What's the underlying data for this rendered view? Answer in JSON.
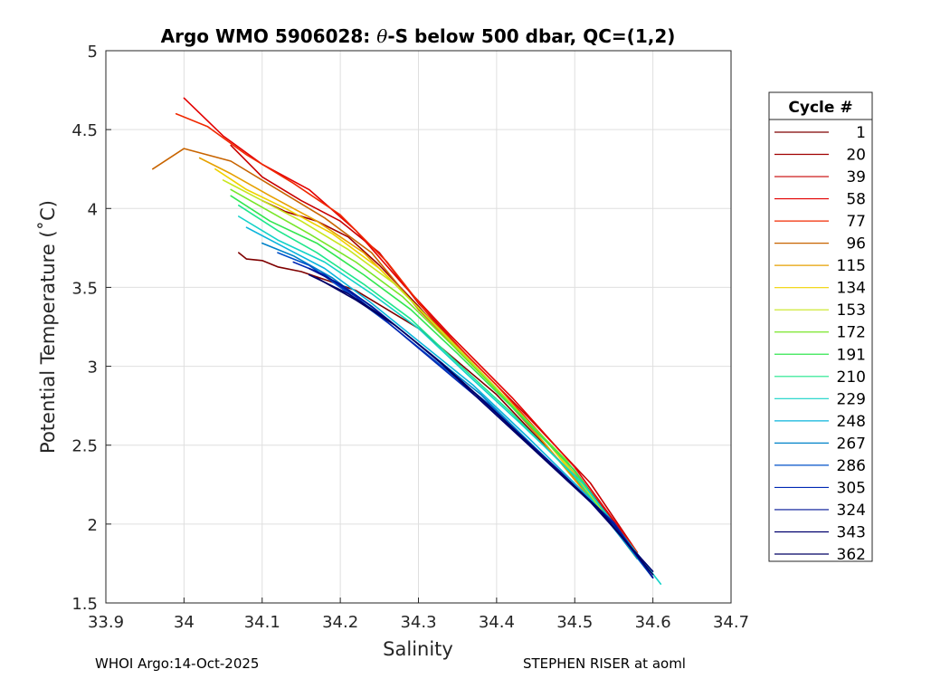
{
  "chart_data": {
    "type": "line",
    "title_prefix": "Argo WMO 5906028: ",
    "title_theta": "θ",
    "title_suffix": "-S below 500 dbar,  QC=(1,2)",
    "xlabel": "Salinity",
    "ylabel": "Potential Temperature (˚C)",
    "xlim": [
      33.9,
      34.7
    ],
    "ylim": [
      1.5,
      5
    ],
    "xticks": [
      33.9,
      34,
      34.1,
      34.2,
      34.3,
      34.4,
      34.5,
      34.6,
      34.7
    ],
    "xtick_labels": [
      "33.9",
      "34",
      "34.1",
      "34.2",
      "34.3",
      "34.4",
      "34.5",
      "34.6",
      "34.7"
    ],
    "yticks": [
      1.5,
      2,
      2.5,
      3,
      3.5,
      4,
      4.5,
      5
    ],
    "ytick_labels": [
      "1.5",
      "2",
      "2.5",
      "3",
      "3.5",
      "4",
      "4.5",
      "5"
    ],
    "grid": true,
    "legend_title": "Cycle #",
    "legend_position": "outside-right",
    "series": [
      {
        "name": "1",
        "color": "#7f0000",
        "s": [
          34.07,
          34.08,
          34.1,
          34.12,
          34.15,
          34.18,
          34.22,
          34.3,
          34.4,
          34.5,
          34.58
        ],
        "t": [
          3.72,
          3.68,
          3.67,
          3.63,
          3.6,
          3.55,
          3.48,
          3.24,
          2.82,
          2.3,
          1.78
        ]
      },
      {
        "name": "20",
        "color": "#a00000",
        "s": [
          34.1,
          34.13,
          34.17,
          34.21,
          34.25,
          34.3,
          34.35,
          34.42,
          34.5,
          34.58
        ],
        "t": [
          4.05,
          3.98,
          3.92,
          3.82,
          3.64,
          3.38,
          3.1,
          2.75,
          2.34,
          1.81
        ]
      },
      {
        "name": "39",
        "color": "#c80000",
        "s": [
          34.06,
          34.1,
          34.15,
          34.2,
          34.25,
          34.3,
          34.36,
          34.44,
          34.52,
          34.58
        ],
        "t": [
          4.4,
          4.2,
          4.05,
          3.92,
          3.72,
          3.4,
          3.08,
          2.68,
          2.26,
          1.82
        ]
      },
      {
        "name": "58",
        "color": "#e30000",
        "s": [
          34.0,
          34.05,
          34.1,
          34.16,
          34.22,
          34.28,
          34.34,
          34.42,
          34.5,
          34.58
        ],
        "t": [
          4.7,
          4.46,
          4.28,
          4.12,
          3.86,
          3.52,
          3.2,
          2.8,
          2.36,
          1.82
        ]
      },
      {
        "name": "77",
        "color": "#f02800",
        "s": [
          33.99,
          34.03,
          34.08,
          34.14,
          34.2,
          34.26,
          34.32,
          34.4,
          34.48,
          34.58
        ],
        "t": [
          4.6,
          4.52,
          4.34,
          4.16,
          3.96,
          3.66,
          3.28,
          2.88,
          2.44,
          1.82
        ]
      },
      {
        "name": "96",
        "color": "#c86400",
        "s": [
          33.96,
          34.0,
          34.06,
          34.12,
          34.18,
          34.24,
          34.3,
          34.38,
          34.46,
          34.58
        ],
        "t": [
          4.25,
          4.38,
          4.3,
          4.12,
          3.94,
          3.72,
          3.36,
          2.96,
          2.52,
          1.81
        ]
      },
      {
        "name": "115",
        "color": "#e6a000",
        "s": [
          34.02,
          34.06,
          34.11,
          34.17,
          34.23,
          34.29,
          34.36,
          34.44,
          34.58
        ],
        "t": [
          4.32,
          4.22,
          4.08,
          3.92,
          3.72,
          3.42,
          3.06,
          2.64,
          1.8
        ]
      },
      {
        "name": "134",
        "color": "#f0d200",
        "s": [
          34.04,
          34.08,
          34.13,
          34.19,
          34.25,
          34.31,
          34.38,
          34.46,
          34.58
        ],
        "t": [
          4.25,
          4.12,
          4.0,
          3.84,
          3.62,
          3.32,
          2.96,
          2.55,
          1.8
        ]
      },
      {
        "name": "153",
        "color": "#c8e61e",
        "s": [
          34.05,
          34.1,
          34.15,
          34.21,
          34.27,
          34.33,
          34.4,
          34.48,
          34.58
        ],
        "t": [
          4.18,
          4.05,
          3.92,
          3.74,
          3.52,
          3.22,
          2.86,
          2.44,
          1.8
        ]
      },
      {
        "name": "172",
        "color": "#78e628",
        "s": [
          34.06,
          34.11,
          34.16,
          34.22,
          34.28,
          34.34,
          34.41,
          34.49,
          34.58
        ],
        "t": [
          4.12,
          3.98,
          3.84,
          3.66,
          3.44,
          3.15,
          2.8,
          2.4,
          1.79
        ]
      },
      {
        "name": "191",
        "color": "#32e650",
        "s": [
          34.06,
          34.11,
          34.17,
          34.23,
          34.29,
          34.35,
          34.42,
          34.5,
          34.58
        ],
        "t": [
          4.08,
          3.92,
          3.78,
          3.58,
          3.36,
          3.08,
          2.74,
          2.34,
          1.79
        ]
      },
      {
        "name": "210",
        "color": "#1ee68c",
        "s": [
          34.07,
          34.12,
          34.17,
          34.23,
          34.29,
          34.35,
          34.42,
          34.5,
          34.58
        ],
        "t": [
          4.02,
          3.86,
          3.72,
          3.52,
          3.3,
          3.02,
          2.7,
          2.3,
          1.78
        ]
      },
      {
        "name": "229",
        "color": "#14d2c8",
        "s": [
          34.07,
          34.12,
          34.18,
          34.24,
          34.3,
          34.36,
          34.43,
          34.51,
          34.61
        ],
        "t": [
          3.95,
          3.8,
          3.66,
          3.46,
          3.24,
          2.96,
          2.64,
          2.26,
          1.62
        ]
      },
      {
        "name": "248",
        "color": "#0ab4dc",
        "s": [
          34.08,
          34.13,
          34.18,
          34.24,
          34.3,
          34.37,
          34.44,
          34.52,
          34.6
        ],
        "t": [
          3.88,
          3.75,
          3.62,
          3.4,
          3.16,
          2.88,
          2.55,
          2.16,
          1.66
        ]
      },
      {
        "name": "267",
        "color": "#0082c8",
        "s": [
          34.1,
          34.14,
          34.19,
          34.25,
          34.31,
          34.38,
          34.45,
          34.53,
          34.6
        ],
        "t": [
          3.78,
          3.7,
          3.56,
          3.34,
          3.1,
          2.82,
          2.48,
          2.1,
          1.66
        ]
      },
      {
        "name": "286",
        "color": "#0050c8",
        "s": [
          34.12,
          34.16,
          34.2,
          34.26,
          34.32,
          34.39,
          34.46,
          34.54,
          34.6
        ],
        "t": [
          3.72,
          3.64,
          3.5,
          3.28,
          3.04,
          2.76,
          2.42,
          2.05,
          1.66
        ]
      },
      {
        "name": "305",
        "color": "#0028b4",
        "s": [
          34.14,
          34.18,
          34.22,
          34.27,
          34.33,
          34.4,
          34.47,
          34.55,
          34.6
        ],
        "t": [
          3.66,
          3.58,
          3.44,
          3.24,
          2.99,
          2.7,
          2.38,
          2.01,
          1.66
        ]
      },
      {
        "name": "324",
        "color": "#001496",
        "s": [
          34.16,
          34.2,
          34.24,
          34.29,
          34.35,
          34.41,
          34.48,
          34.55,
          34.6
        ],
        "t": [
          3.62,
          3.52,
          3.38,
          3.18,
          2.93,
          2.66,
          2.34,
          2.0,
          1.66
        ]
      },
      {
        "name": "343",
        "color": "#00006e",
        "s": [
          34.16,
          34.21,
          34.26,
          34.32,
          34.38,
          34.45,
          34.52,
          34.6
        ],
        "t": [
          3.58,
          3.46,
          3.3,
          3.06,
          2.78,
          2.46,
          2.14,
          1.7
        ]
      },
      {
        "name": "362",
        "color": "#000064",
        "s": [
          34.17,
          34.22,
          34.27,
          34.33,
          34.39,
          34.46,
          34.53,
          34.6
        ],
        "t": [
          3.56,
          3.42,
          3.26,
          3.02,
          2.75,
          2.42,
          2.1,
          1.68
        ]
      }
    ]
  },
  "footer": {
    "left": "WHOI Argo:14-Oct-2025",
    "right": "STEPHEN RISER at aoml"
  }
}
